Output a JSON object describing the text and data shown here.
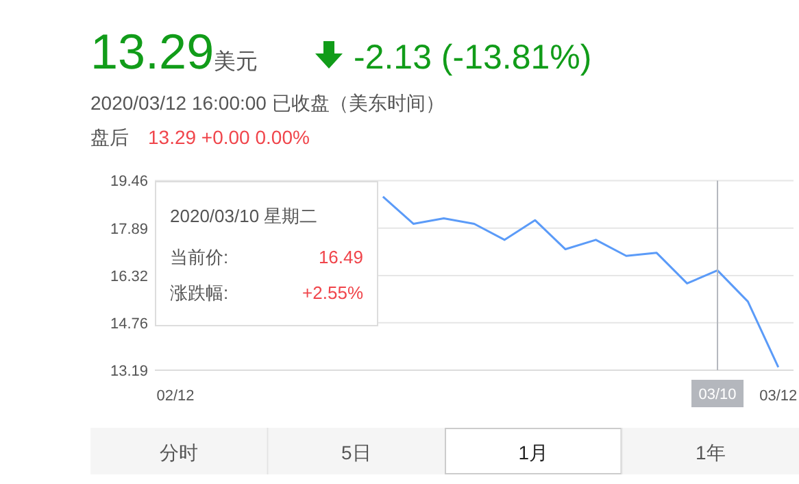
{
  "chart_data": {
    "type": "line",
    "title": "13.29",
    "subtitle": "2020/03/12 16:00:00 已收盘（美东时间）",
    "categories": [
      "02/12",
      null,
      null,
      null,
      null,
      null,
      null,
      null,
      null,
      null,
      null,
      null,
      null,
      null,
      null,
      null,
      null,
      null,
      "03/10",
      null,
      "03/12"
    ],
    "series": [
      {
        "color": "#5b9bf8",
        "values": [
          null,
          null,
          null,
          null,
          null,
          null,
          null,
          18.93,
          18.03,
          18.21,
          18.03,
          17.5,
          18.15,
          17.19,
          17.5,
          16.97,
          17.07,
          16.06,
          16.49,
          15.46,
          13.29
        ]
      }
    ],
    "ylim": [
      13.19,
      19.46
    ],
    "yticks": [
      13.19,
      14.76,
      16.32,
      17.89,
      19.46
    ],
    "grid": "y",
    "ref_lines": [
      {
        "axis": "x",
        "value": "03/10",
        "color": "#b4b7bd"
      }
    ],
    "annotations": [
      "美元",
      "-2.13 (-13.81%)",
      "盘后",
      "13.29 +0.00 0.00%",
      "2020/03/10 星期二",
      "当前价:",
      "16.49",
      "涨跌幅:",
      "+2.55%",
      "分时",
      "5日",
      "1月",
      "1年"
    ]
  }
}
